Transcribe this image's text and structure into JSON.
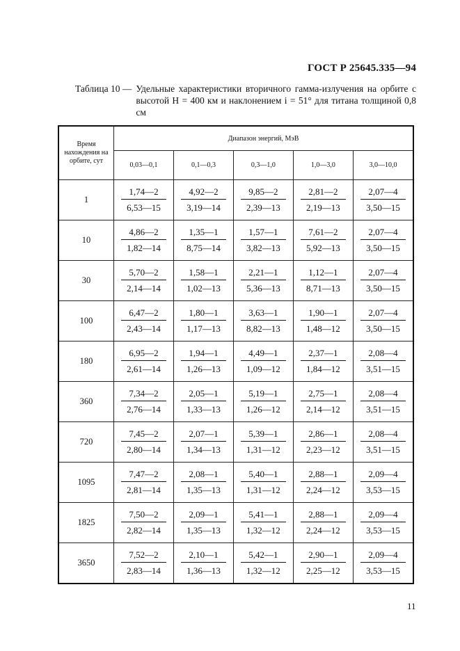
{
  "header": {
    "doc_code": "ГОСТ Р 25645.335—94"
  },
  "caption": {
    "label": "Таблица 10 —",
    "text": "Удельные характеристики вторичного гамма-излучения на орбите с высотой H = 400 км и наклонением i = 51° для титана толщиной 0,8 см"
  },
  "table": {
    "time_header": "Время нахождения на орбите, сут",
    "range_header": "Диапазон энергий, МэВ",
    "columns": [
      "0,03—0,1",
      "0,1—0,3",
      "0,3—1,0",
      "1,0—3,0",
      "3,0—10,0"
    ],
    "rows": [
      {
        "time": "1",
        "cells": [
          [
            "1,74—2",
            "6,53—15"
          ],
          [
            "4,92—2",
            "3,19—14"
          ],
          [
            "9,85—2",
            "2,39—13"
          ],
          [
            "2,81—2",
            "2,19—13"
          ],
          [
            "2,07—4",
            "3,50—15"
          ]
        ]
      },
      {
        "time": "10",
        "cells": [
          [
            "4,86—2",
            "1,82—14"
          ],
          [
            "1,35—1",
            "8,75—14"
          ],
          [
            "1,57—1",
            "3,82—13"
          ],
          [
            "7,61—2",
            "5,92—13"
          ],
          [
            "2,07—4",
            "3,50—15"
          ]
        ]
      },
      {
        "time": "30",
        "cells": [
          [
            "5,70—2",
            "2,14—14"
          ],
          [
            "1,58—1",
            "1,02—13"
          ],
          [
            "2,21—1",
            "5,36—13"
          ],
          [
            "1,12—1",
            "8,71—13"
          ],
          [
            "2,07—4",
            "3,50—15"
          ]
        ]
      },
      {
        "time": "100",
        "cells": [
          [
            "6,47—2",
            "2,43—14"
          ],
          [
            "1,80—1",
            "1,17—13"
          ],
          [
            "3,63—1",
            "8,82—13"
          ],
          [
            "1,90—1",
            "1,48—12"
          ],
          [
            "2,07—4",
            "3,50—15"
          ]
        ]
      },
      {
        "time": "180",
        "cells": [
          [
            "6,95—2",
            "2,61—14"
          ],
          [
            "1,94—1",
            "1,26—13"
          ],
          [
            "4,49—1",
            "1,09—12"
          ],
          [
            "2,37—1",
            "1,84—12"
          ],
          [
            "2,08—4",
            "3,51—15"
          ]
        ]
      },
      {
        "time": "360",
        "cells": [
          [
            "7,34—2",
            "2,76—14"
          ],
          [
            "2,05—1",
            "1,33—13"
          ],
          [
            "5,19—1",
            "1,26—12"
          ],
          [
            "2,75—1",
            "2,14—12"
          ],
          [
            "2,08—4",
            "3,51—15"
          ]
        ]
      },
      {
        "time": "720",
        "cells": [
          [
            "7,45—2",
            "2,80—14"
          ],
          [
            "2,07—1",
            "1,34—13"
          ],
          [
            "5,39—1",
            "1,31—12"
          ],
          [
            "2,86—1",
            "2,23—12"
          ],
          [
            "2,08—4",
            "3,51—15"
          ]
        ]
      },
      {
        "time": "1095",
        "cells": [
          [
            "7,47—2",
            "2,81—14"
          ],
          [
            "2,08—1",
            "1,35—13"
          ],
          [
            "5,40—1",
            "1,31—12"
          ],
          [
            "2,88—1",
            "2,24—12"
          ],
          [
            "2,09—4",
            "3,53—15"
          ]
        ]
      },
      {
        "time": "1825",
        "cells": [
          [
            "7,50—2",
            "2,82—14"
          ],
          [
            "2,09—1",
            "1,35—13"
          ],
          [
            "5,41—1",
            "1,32—12"
          ],
          [
            "2,88—1",
            "2,24—12"
          ],
          [
            "2,09—4",
            "3,53—15"
          ]
        ]
      },
      {
        "time": "3650",
        "cells": [
          [
            "7,52—2",
            "2,83—14"
          ],
          [
            "2,10—1",
            "1,36—13"
          ],
          [
            "5,42—1",
            "1,32—12"
          ],
          [
            "2,90—1",
            "2,25—12"
          ],
          [
            "2,09—4",
            "3,53—15"
          ]
        ]
      }
    ]
  },
  "footer": {
    "page_number": "11"
  }
}
